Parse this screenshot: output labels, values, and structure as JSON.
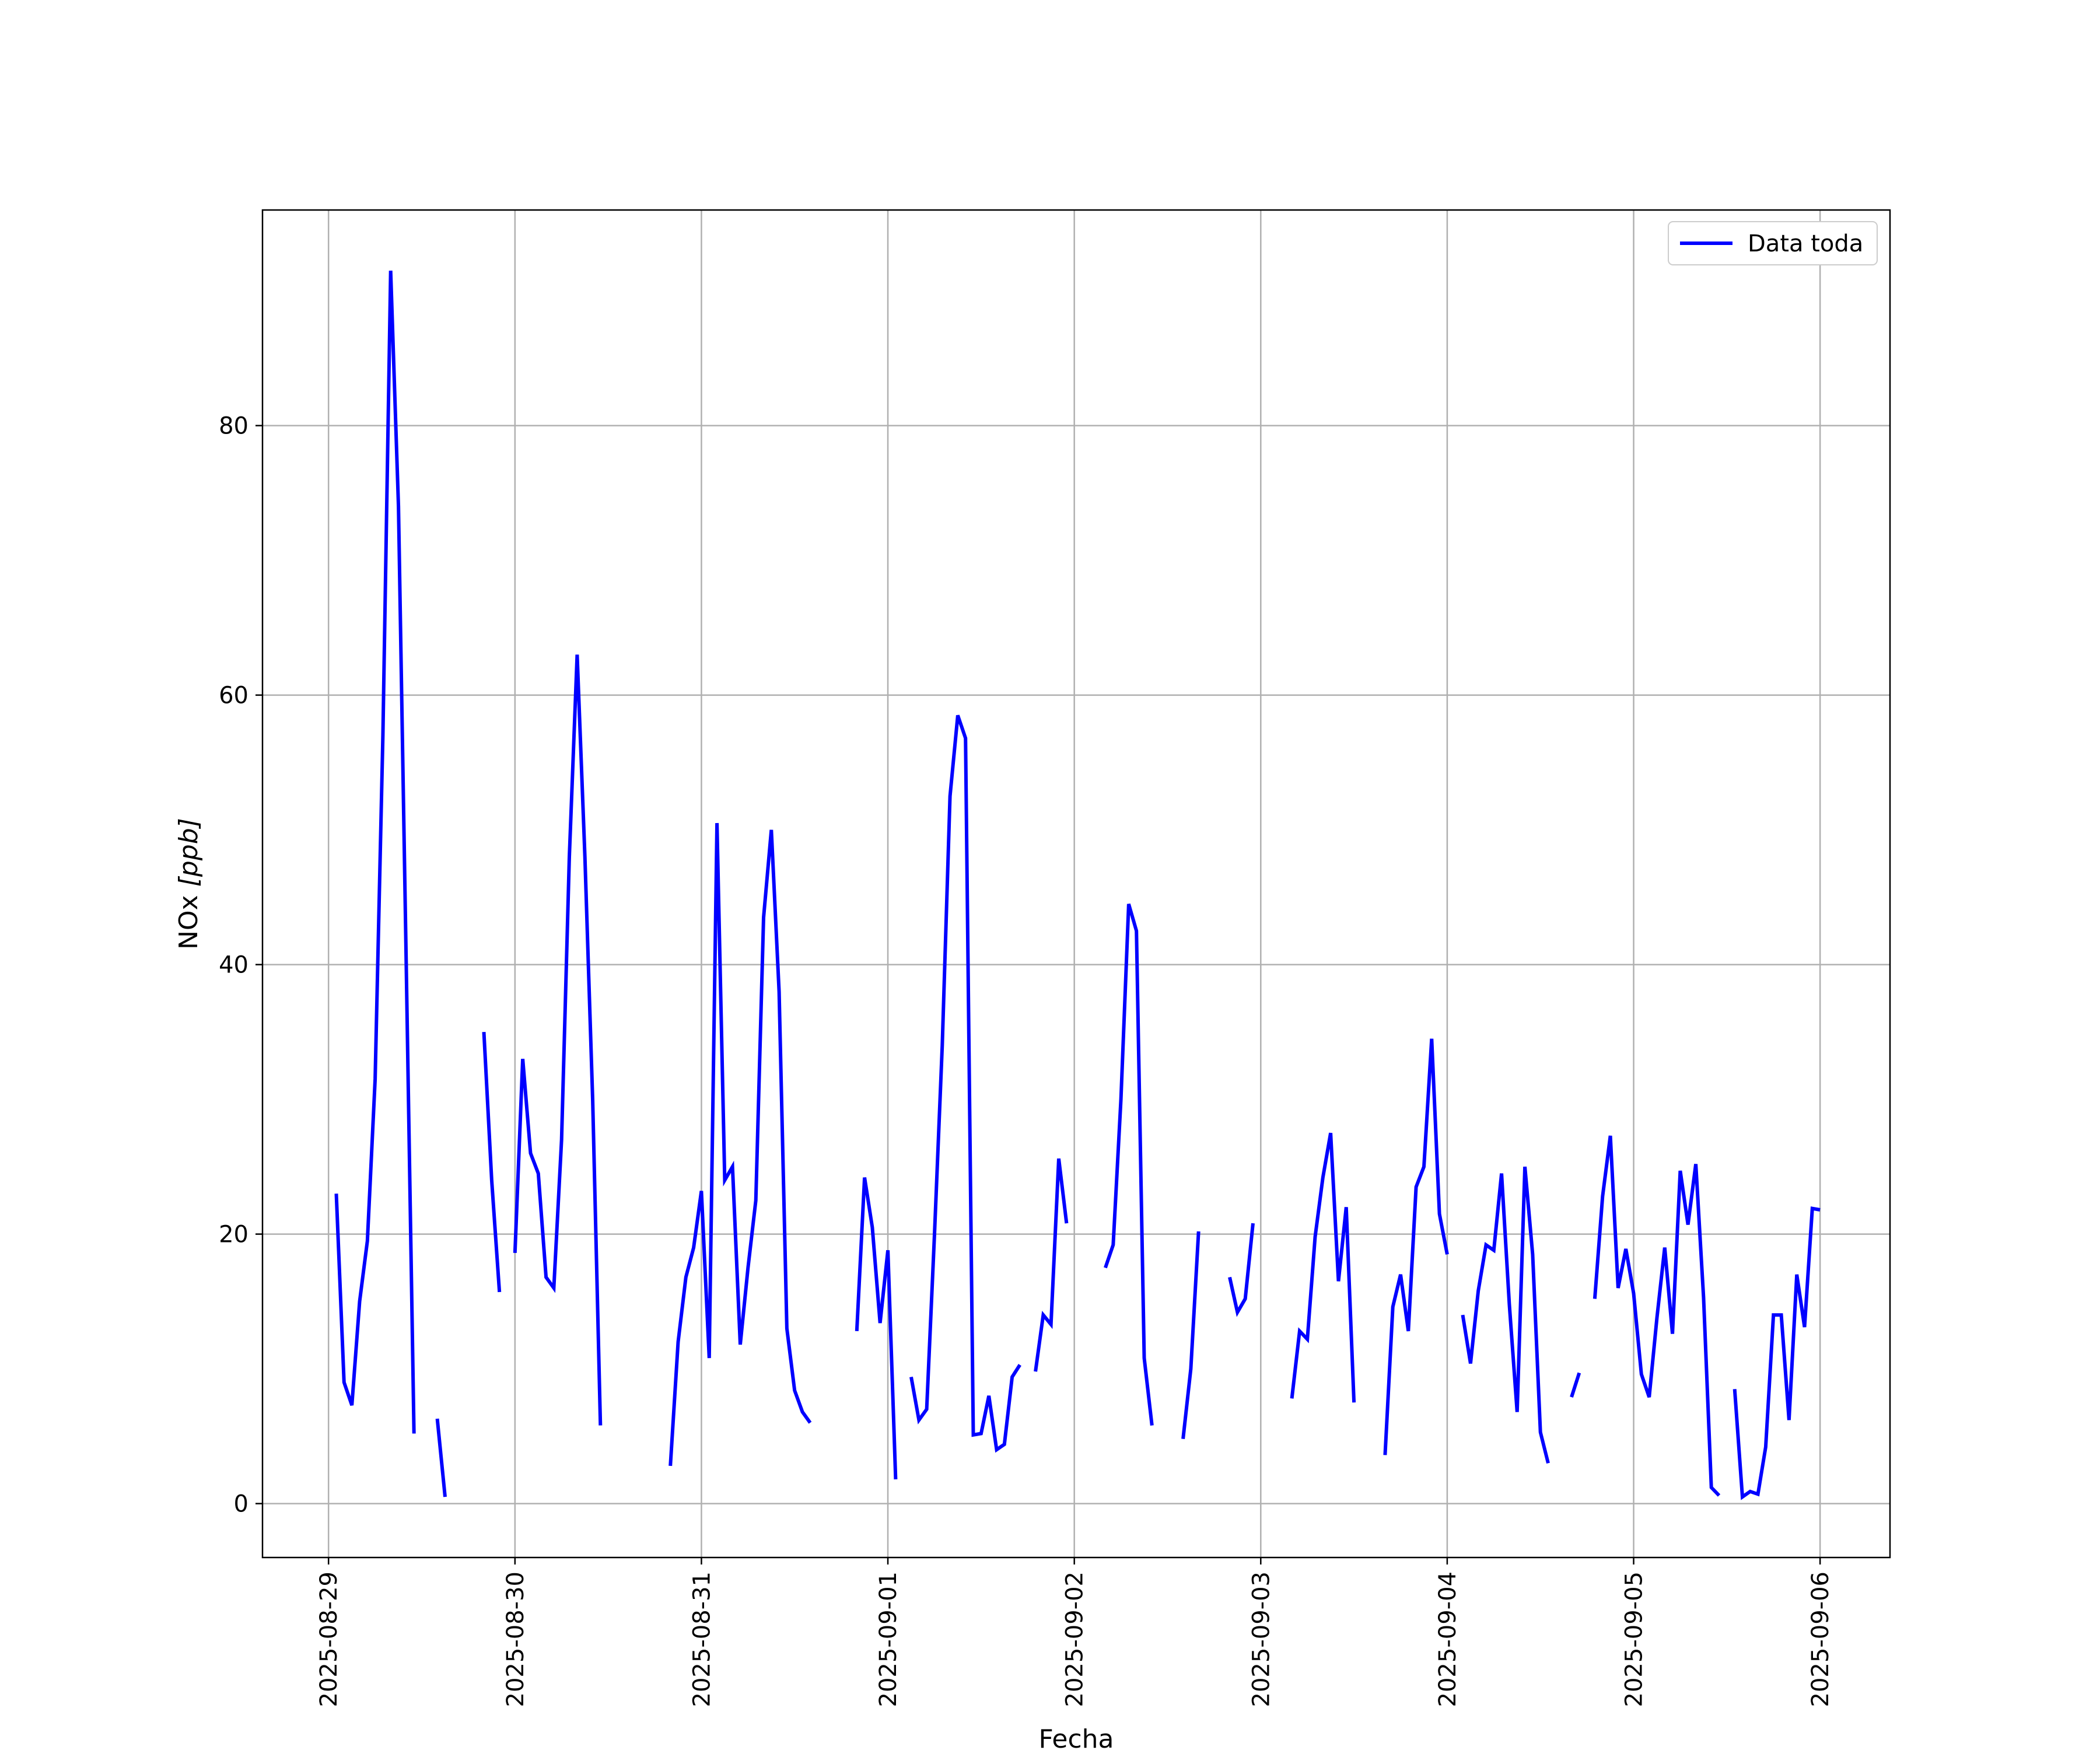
{
  "chart_data": {
    "type": "line",
    "title": "",
    "xlabel": "Fecha",
    "ylabel": "NOx [ppb]",
    "ylabel_main": "NOx ",
    "ylabel_unit": "[ppb]",
    "x_ticks": [
      "2025-08-29",
      "2025-08-30",
      "2025-08-31",
      "2025-09-01",
      "2025-09-02",
      "2025-09-03",
      "2025-09-04",
      "2025-09-05",
      "2025-09-06"
    ],
    "y_ticks": [
      0,
      20,
      40,
      60,
      80
    ],
    "xlim": [
      "2025-08-28 15:30",
      "2025-09-06 09:00"
    ],
    "ylim": [
      -4,
      96
    ],
    "grid": true,
    "legend_position": "top-right",
    "colors": {
      "series": "#0000ff",
      "grid": "#b0b0b0",
      "axes": "#000000"
    },
    "series": [
      {
        "name": "Data toda",
        "segments": [
          [
            [
              "2025-08-29 01:00",
              23.0
            ],
            [
              "2025-08-29 02:00",
              9.0
            ],
            [
              "2025-08-29 03:00",
              7.3
            ],
            [
              "2025-08-29 04:00",
              15.0
            ],
            [
              "2025-08-29 05:00",
              19.5
            ],
            [
              "2025-08-29 06:00",
              31.5
            ],
            [
              "2025-08-29 07:00",
              57.0
            ],
            [
              "2025-08-29 08:00",
              91.5
            ],
            [
              "2025-08-29 09:00",
              74.0
            ],
            [
              "2025-08-29 10:00",
              40.0
            ],
            [
              "2025-08-29 11:00",
              5.2
            ]
          ],
          [
            [
              "2025-08-29 14:00",
              6.3
            ],
            [
              "2025-08-29 15:00",
              0.5
            ]
          ],
          [
            [
              "2025-08-29 20:00",
              35.0
            ],
            [
              "2025-08-29 21:00",
              24.0
            ],
            [
              "2025-08-29 22:00",
              15.7
            ]
          ],
          [
            [
              "2025-08-30 00:00",
              18.6
            ],
            [
              "2025-08-30 01:00",
              33.0
            ],
            [
              "2025-08-30 02:00",
              26.0
            ],
            [
              "2025-08-30 03:00",
              24.5
            ],
            [
              "2025-08-30 04:00",
              16.8
            ],
            [
              "2025-08-30 05:00",
              16.0
            ],
            [
              "2025-08-30 06:00",
              27.0
            ],
            [
              "2025-08-30 07:00",
              48.0
            ],
            [
              "2025-08-30 08:00",
              63.0
            ],
            [
              "2025-08-30 09:00",
              48.0
            ],
            [
              "2025-08-30 10:00",
              30.0
            ],
            [
              "2025-08-30 11:00",
              5.8
            ]
          ],
          [
            [
              "2025-08-30 20:00",
              2.8
            ],
            [
              "2025-08-30 21:00",
              12.0
            ],
            [
              "2025-08-30 22:00",
              16.8
            ],
            [
              "2025-08-30 23:00",
              19.0
            ],
            [
              "2025-08-31 00:00",
              23.2
            ],
            [
              "2025-08-31 01:00",
              10.8
            ],
            [
              "2025-08-31 02:00",
              50.5
            ],
            [
              "2025-08-31 03:00",
              24.0
            ],
            [
              "2025-08-31 04:00",
              25.0
            ],
            [
              "2025-08-31 05:00",
              11.8
            ],
            [
              "2025-08-31 06:00",
              17.5
            ],
            [
              "2025-08-31 07:00",
              22.5
            ],
            [
              "2025-08-31 08:00",
              43.5
            ],
            [
              "2025-08-31 09:00",
              50.0
            ],
            [
              "2025-08-31 10:00",
              38.0
            ],
            [
              "2025-08-31 11:00",
              13.0
            ],
            [
              "2025-08-31 12:00",
              8.4
            ],
            [
              "2025-08-31 13:00",
              6.8
            ],
            [
              "2025-08-31 14:00",
              6.0
            ]
          ],
          [
            [
              "2025-08-31 20:00",
              12.8
            ],
            [
              "2025-08-31 21:00",
              24.2
            ],
            [
              "2025-08-31 22:00",
              20.5
            ],
            [
              "2025-08-31 23:00",
              13.4
            ],
            [
              "2025-09-01 00:00",
              18.8
            ],
            [
              "2025-09-01 01:00",
              1.8
            ]
          ],
          [
            [
              "2025-09-01 03:00",
              9.4
            ],
            [
              "2025-09-01 04:00",
              6.2
            ],
            [
              "2025-09-01 05:00",
              7.0
            ],
            [
              "2025-09-01 06:00",
              20.0
            ],
            [
              "2025-09-01 07:00",
              34.0
            ],
            [
              "2025-09-01 08:00",
              52.5
            ],
            [
              "2025-09-01 09:00",
              58.5
            ],
            [
              "2025-09-01 10:00",
              56.8
            ],
            [
              "2025-09-01 11:00",
              5.1
            ],
            [
              "2025-09-01 12:00",
              5.2
            ],
            [
              "2025-09-01 13:00",
              8.0
            ],
            [
              "2025-09-01 14:00",
              4.0
            ],
            [
              "2025-09-01 15:00",
              4.4
            ],
            [
              "2025-09-01 16:00",
              9.4
            ],
            [
              "2025-09-01 17:00",
              10.3
            ]
          ],
          [
            [
              "2025-09-01 19:00",
              9.8
            ],
            [
              "2025-09-01 20:00",
              14.0
            ],
            [
              "2025-09-01 21:00",
              13.3
            ],
            [
              "2025-09-01 22:00",
              25.6
            ],
            [
              "2025-09-01 23:00",
              20.8
            ]
          ],
          [
            [
              "2025-09-02 04:00",
              17.5
            ],
            [
              "2025-09-02 05:00",
              19.2
            ],
            [
              "2025-09-02 06:00",
              30.0
            ],
            [
              "2025-09-02 07:00",
              44.5
            ],
            [
              "2025-09-02 08:00",
              42.5
            ],
            [
              "2025-09-02 09:00",
              10.8
            ],
            [
              "2025-09-02 10:00",
              5.8
            ]
          ],
          [
            [
              "2025-09-02 14:00",
              4.8
            ],
            [
              "2025-09-02 15:00",
              10.0
            ],
            [
              "2025-09-02 16:00",
              20.2
            ]
          ],
          [
            [
              "2025-09-02 20:00",
              16.8
            ],
            [
              "2025-09-02 21:00",
              14.2
            ],
            [
              "2025-09-02 22:00",
              15.2
            ],
            [
              "2025-09-02 23:00",
              20.8
            ]
          ],
          [
            [
              "2025-09-03 04:00",
              7.8
            ],
            [
              "2025-09-03 05:00",
              12.8
            ],
            [
              "2025-09-03 06:00",
              12.2
            ],
            [
              "2025-09-03 07:00",
              19.8
            ],
            [
              "2025-09-03 08:00",
              24.2
            ],
            [
              "2025-09-03 09:00",
              27.5
            ],
            [
              "2025-09-03 10:00",
              16.5
            ],
            [
              "2025-09-03 11:00",
              22.0
            ],
            [
              "2025-09-03 12:00",
              7.5
            ]
          ],
          [
            [
              "2025-09-03 16:00",
              3.6
            ],
            [
              "2025-09-03 17:00",
              14.6
            ],
            [
              "2025-09-03 18:00",
              17.0
            ],
            [
              "2025-09-03 19:00",
              12.8
            ],
            [
              "2025-09-03 20:00",
              23.5
            ],
            [
              "2025-09-03 21:00",
              25.0
            ],
            [
              "2025-09-03 22:00",
              34.5
            ],
            [
              "2025-09-03 23:00",
              21.5
            ],
            [
              "2025-09-04 00:00",
              18.5
            ]
          ],
          [
            [
              "2025-09-04 02:00",
              14.0
            ],
            [
              "2025-09-04 03:00",
              10.4
            ],
            [
              "2025-09-04 04:00",
              15.8
            ],
            [
              "2025-09-04 05:00",
              19.2
            ],
            [
              "2025-09-04 06:00",
              18.8
            ],
            [
              "2025-09-04 07:00",
              24.5
            ],
            [
              "2025-09-04 08:00",
              14.8
            ],
            [
              "2025-09-04 09:00",
              6.8
            ],
            [
              "2025-09-04 10:00",
              25.0
            ],
            [
              "2025-09-04 11:00",
              18.5
            ],
            [
              "2025-09-04 12:00",
              5.3
            ],
            [
              "2025-09-04 13:00",
              3.0
            ]
          ],
          [
            [
              "2025-09-04 16:00",
              7.9
            ],
            [
              "2025-09-04 17:00",
              9.7
            ]
          ],
          [
            [
              "2025-09-04 19:00",
              15.2
            ],
            [
              "2025-09-04 20:00",
              22.8
            ],
            [
              "2025-09-04 21:00",
              27.3
            ],
            [
              "2025-09-04 22:00",
              16.0
            ],
            [
              "2025-09-04 23:00",
              18.9
            ],
            [
              "2025-09-05 00:00",
              15.6
            ],
            [
              "2025-09-05 01:00",
              9.6
            ],
            [
              "2025-09-05 02:00",
              7.9
            ],
            [
              "2025-09-05 03:00",
              13.8
            ],
            [
              "2025-09-05 04:00",
              19.0
            ],
            [
              "2025-09-05 05:00",
              12.6
            ],
            [
              "2025-09-05 06:00",
              24.7
            ],
            [
              "2025-09-05 07:00",
              20.7
            ],
            [
              "2025-09-05 08:00",
              25.2
            ],
            [
              "2025-09-05 09:00",
              15.3
            ],
            [
              "2025-09-05 10:00",
              1.2
            ],
            [
              "2025-09-05 11:00",
              0.6
            ]
          ],
          [
            [
              "2025-09-05 13:00",
              8.5
            ],
            [
              "2025-09-05 14:00",
              0.5
            ],
            [
              "2025-09-05 15:00",
              0.9
            ],
            [
              "2025-09-05 16:00",
              0.7
            ],
            [
              "2025-09-05 17:00",
              4.2
            ],
            [
              "2025-09-05 18:00",
              14.0
            ],
            [
              "2025-09-05 19:00",
              14.0
            ],
            [
              "2025-09-05 20:00",
              6.2
            ],
            [
              "2025-09-05 21:00",
              17.0
            ],
            [
              "2025-09-05 22:00",
              13.1
            ],
            [
              "2025-09-05 23:00",
              21.9
            ],
            [
              "2025-09-06 00:00",
              21.8
            ]
          ]
        ]
      }
    ]
  }
}
